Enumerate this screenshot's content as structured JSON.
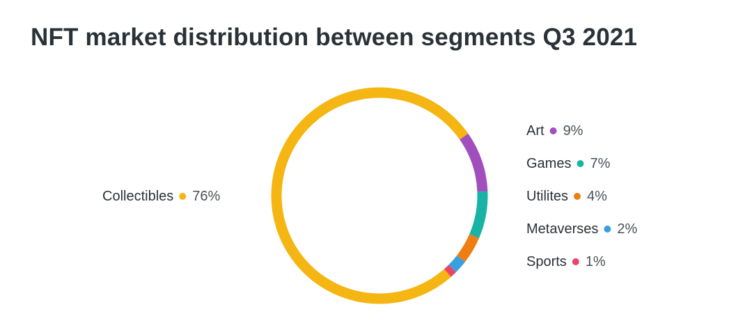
{
  "chart_data": {
    "type": "pie",
    "variant": "donut",
    "title": "NFT market distribution between segments Q3 2021",
    "slices": [
      {
        "label": "Art",
        "value": 9,
        "display": "9%",
        "color": "#a14fbd"
      },
      {
        "label": "Games",
        "value": 7,
        "display": "7%",
        "color": "#19b3a6"
      },
      {
        "label": "Utilites",
        "value": 4,
        "display": "4%",
        "color": "#ef7d12"
      },
      {
        "label": "Metaverses",
        "value": 2,
        "display": "2%",
        "color": "#3a9fe0"
      },
      {
        "label": "Sports",
        "value": 1,
        "display": "1%",
        "color": "#ea4467"
      },
      {
        "label": "Collectibles",
        "value": 76,
        "display": "76%",
        "color": "#f5b512"
      }
    ],
    "legend": "labels beside the ring, one per segment"
  }
}
